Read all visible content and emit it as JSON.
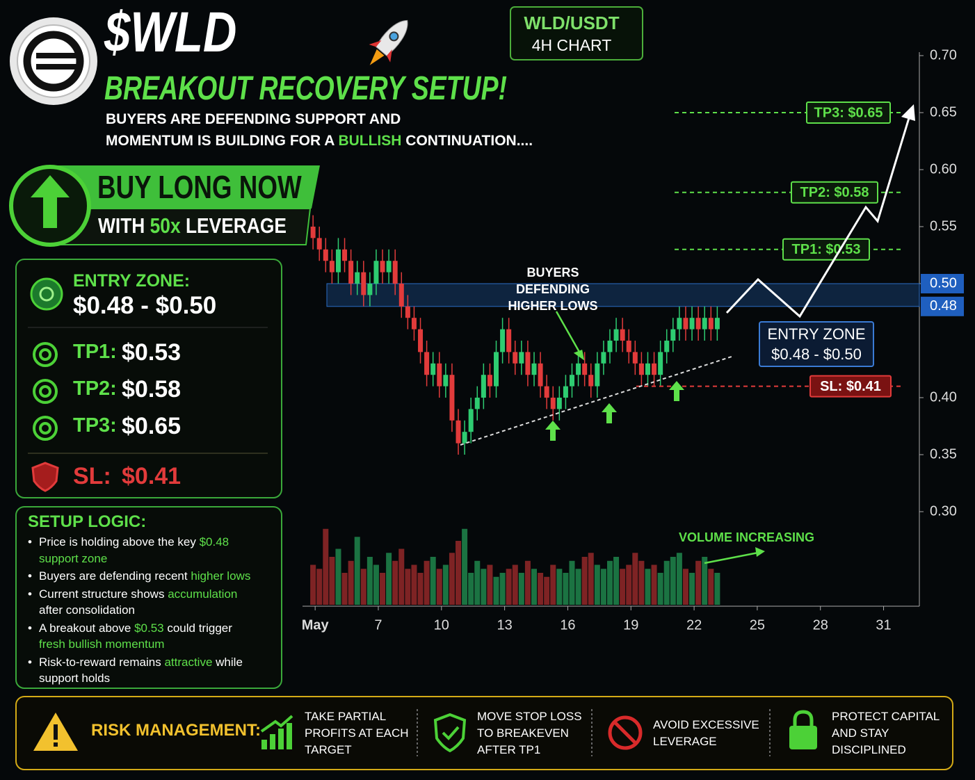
{
  "header": {
    "ticker": "$WLD",
    "headline": "BREAKOUT RECOVERY SETUP!",
    "description": {
      "line1": "BUYERS ARE DEFENDING SUPPORT AND",
      "line2": [
        "MOMENTUM IS BUILDING FOR A",
        "BULLISH",
        "CONTINUATION...."
      ]
    }
  },
  "cta": {
    "action": "BUY LONG NOW",
    "leverage": [
      "WITH",
      "50x",
      "LEVERAGE"
    ]
  },
  "levels_panel": {
    "entry_label": "ENTRY ZONE:",
    "entry_range": "$0.48 - $0.50",
    "targets": [
      {
        "label": "TP1:",
        "price": "$0.53"
      },
      {
        "label": "TP2:",
        "price": "$0.58"
      },
      {
        "label": "TP3:",
        "price": "$0.65"
      }
    ],
    "stop": {
      "label": "SL:",
      "price": "$0.41"
    }
  },
  "setup_logic": {
    "title": "SETUP LOGIC:",
    "bullets": [
      [
        "Price is holding above the key",
        "$0.48 support zone"
      ],
      [
        "Buyers are defending recent",
        "higher lows"
      ],
      [
        "Current structure shows",
        "accumulation",
        "after consolidation"
      ],
      [
        "A breakout above",
        "$0.53",
        "could trigger",
        "fresh bullish momentum"
      ],
      [
        "Risk-to-reward remains",
        "attractive",
        "while support holds"
      ]
    ]
  },
  "risk_management": {
    "title": "RISK MANAGEMENT:",
    "items": [
      "TAKE PARTIAL PROFITS AT EACH TARGET",
      "MOVE STOP LOSS TO BREAKEVEN AFTER TP1",
      "AVOID EXCESSIVE LEVERAGE",
      "PROTECT CAPITAL AND STAY DISCIPLINED"
    ]
  },
  "chart_data": {
    "type": "candlestick",
    "pair": "WLD/USDT",
    "timeframe": "4H CHART",
    "up_color": "#2ecc71",
    "down_color": "#e23b3b",
    "x": [
      3.9,
      4.2,
      4.5,
      4.8,
      5.1,
      5.4,
      5.7,
      6,
      6.3,
      6.6,
      6.9,
      7.2,
      7.5,
      7.8,
      8.1,
      8.4,
      8.7,
      9,
      9.3,
      9.6,
      9.9,
      10.2,
      10.5,
      10.8,
      11.1,
      11.4,
      11.7,
      12,
      12.3,
      12.6,
      12.9,
      13.2,
      13.5,
      13.8,
      14.1,
      14.4,
      14.7,
      15,
      15.3,
      15.6,
      15.9,
      16.2,
      16.5,
      16.8,
      17.1,
      17.4,
      17.7,
      18,
      18.3,
      18.6,
      18.9,
      19.2,
      19.5,
      19.8,
      20.1,
      20.4,
      20.7,
      21,
      21.3,
      21.6,
      21.9,
      22.2,
      22.5,
      22.8,
      23.1
    ],
    "open": [
      0.55,
      0.54,
      0.53,
      0.52,
      0.51,
      0.53,
      0.52,
      0.5,
      0.51,
      0.49,
      0.5,
      0.52,
      0.51,
      0.52,
      0.5,
      0.48,
      0.47,
      0.46,
      0.44,
      0.42,
      0.43,
      0.41,
      0.42,
      0.38,
      0.36,
      0.37,
      0.39,
      0.4,
      0.42,
      0.41,
      0.44,
      0.46,
      0.44,
      0.43,
      0.44,
      0.42,
      0.43,
      0.41,
      0.4,
      0.39,
      0.4,
      0.41,
      0.42,
      0.43,
      0.42,
      0.41,
      0.43,
      0.44,
      0.45,
      0.46,
      0.45,
      0.44,
      0.43,
      0.42,
      0.43,
      0.42,
      0.44,
      0.45,
      0.46,
      0.47,
      0.46,
      0.47,
      0.46,
      0.47,
      0.46
    ],
    "high": [
      0.56,
      0.55,
      0.54,
      0.53,
      0.54,
      0.54,
      0.53,
      0.52,
      0.52,
      0.51,
      0.53,
      0.53,
      0.53,
      0.53,
      0.51,
      0.49,
      0.48,
      0.47,
      0.45,
      0.44,
      0.44,
      0.43,
      0.43,
      0.39,
      0.38,
      0.4,
      0.41,
      0.43,
      0.43,
      0.45,
      0.47,
      0.47,
      0.45,
      0.45,
      0.45,
      0.44,
      0.44,
      0.42,
      0.41,
      0.41,
      0.42,
      0.43,
      0.44,
      0.44,
      0.43,
      0.44,
      0.45,
      0.46,
      0.47,
      0.47,
      0.46,
      0.45,
      0.44,
      0.44,
      0.44,
      0.45,
      0.46,
      0.47,
      0.48,
      0.48,
      0.48,
      0.48,
      0.48,
      0.48,
      0.48
    ],
    "low": [
      0.53,
      0.52,
      0.51,
      0.5,
      0.5,
      0.51,
      0.49,
      0.49,
      0.48,
      0.48,
      0.49,
      0.5,
      0.5,
      0.49,
      0.47,
      0.46,
      0.45,
      0.43,
      0.41,
      0.41,
      0.4,
      0.4,
      0.37,
      0.35,
      0.35,
      0.36,
      0.38,
      0.39,
      0.4,
      0.4,
      0.43,
      0.43,
      0.42,
      0.42,
      0.41,
      0.41,
      0.4,
      0.39,
      0.38,
      0.38,
      0.39,
      0.4,
      0.41,
      0.41,
      0.4,
      0.4,
      0.42,
      0.43,
      0.44,
      0.44,
      0.43,
      0.42,
      0.41,
      0.41,
      0.41,
      0.41,
      0.43,
      0.44,
      0.45,
      0.45,
      0.45,
      0.45,
      0.45,
      0.45,
      0.45
    ],
    "close": [
      0.54,
      0.53,
      0.52,
      0.51,
      0.53,
      0.52,
      0.5,
      0.51,
      0.49,
      0.5,
      0.52,
      0.51,
      0.52,
      0.5,
      0.48,
      0.47,
      0.46,
      0.44,
      0.42,
      0.43,
      0.41,
      0.42,
      0.38,
      0.36,
      0.37,
      0.39,
      0.4,
      0.42,
      0.41,
      0.44,
      0.46,
      0.44,
      0.43,
      0.44,
      0.42,
      0.43,
      0.41,
      0.4,
      0.39,
      0.4,
      0.41,
      0.42,
      0.43,
      0.42,
      0.41,
      0.43,
      0.44,
      0.45,
      0.46,
      0.45,
      0.44,
      0.43,
      0.42,
      0.43,
      0.42,
      0.44,
      0.45,
      0.46,
      0.47,
      0.46,
      0.47,
      0.46,
      0.47,
      0.46,
      0.47
    ],
    "volume": [
      50,
      45,
      95,
      60,
      70,
      40,
      55,
      85,
      45,
      60,
      50,
      40,
      65,
      55,
      70,
      45,
      50,
      40,
      55,
      60,
      45,
      50,
      65,
      80,
      95,
      40,
      55,
      45,
      50,
      35,
      40,
      45,
      50,
      40,
      55,
      45,
      40,
      35,
      50,
      45,
      40,
      55,
      45,
      60,
      65,
      50,
      45,
      55,
      60,
      45,
      50,
      65,
      55,
      45,
      50,
      40,
      55,
      60,
      65,
      45,
      40,
      55,
      60,
      45,
      40
    ],
    "xlim": [
      3.4,
      32.7
    ],
    "xticks": [
      {
        "value": 4,
        "label": "May"
      },
      7,
      10,
      13,
      16,
      19,
      22,
      25,
      28,
      31
    ],
    "ylim": [
      0.3,
      0.7
    ],
    "yticks": [
      {
        "value": 0.3,
        "label": "0.30"
      },
      0.35,
      {
        "value": 0.4,
        "label": "0.40"
      },
      {
        "value": 0.5,
        "label": "0.50"
      },
      0.55,
      {
        "value": 0.6,
        "label": "0.60"
      },
      0.65,
      {
        "value": 0.7,
        "label": "0.70"
      }
    ],
    "levels": [
      {
        "label": "TP3: $0.65",
        "value": 0.65,
        "color": "#5ee04a"
      },
      {
        "label": "TP2: $0.58",
        "value": 0.58,
        "color": "#5ee04a"
      },
      {
        "label": "TP1: $0.53",
        "value": 0.53,
        "color": "#5ee04a"
      },
      {
        "label": "SL: $0.41",
        "value": 0.41,
        "color": "#e23b3b"
      }
    ],
    "entry_zone": {
      "title": "ENTRY ZONE",
      "text": "$0.48 - $0.50",
      "bounds": [
        {
          "value": 0.48,
          "label": "0.48"
        },
        {
          "value": 0.5,
          "label": "0.50"
        }
      ]
    },
    "annotations": {
      "buyers": "BUYERS DEFENDING HIGHER LOWS",
      "volume": "VOLUME INCREASING"
    }
  }
}
